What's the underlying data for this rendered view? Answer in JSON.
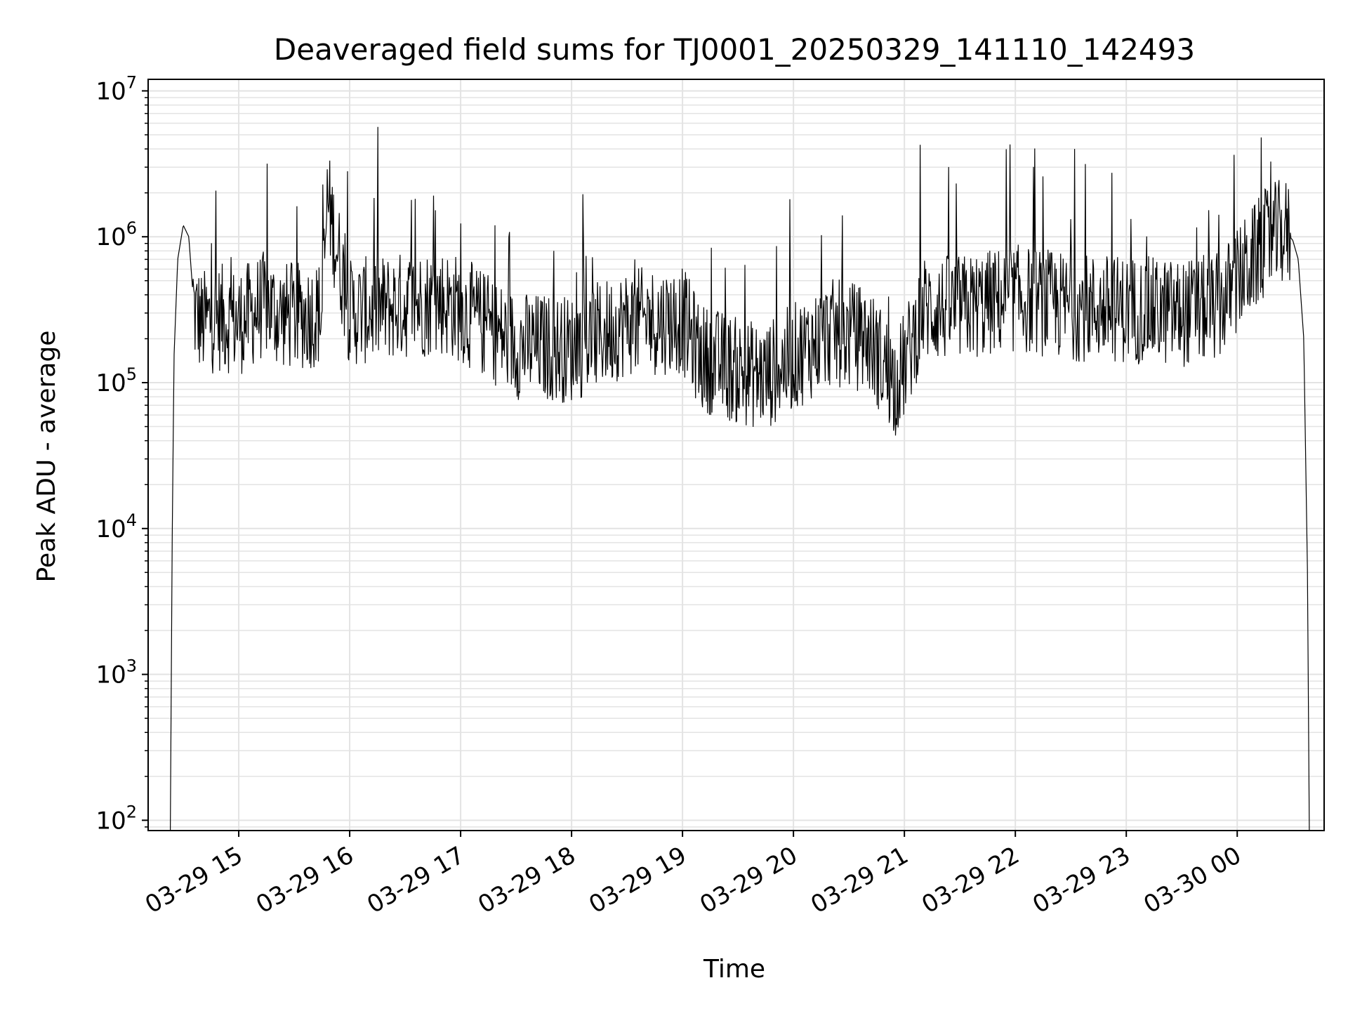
{
  "chart_data": {
    "type": "line",
    "title": "Deaveraged field sums for TJ0001_20250329_141110_142493",
    "xlabel": "Time",
    "ylabel": "Peak ADU - average",
    "yscale": "log",
    "ylim": [
      85,
      12000000
    ],
    "xlim": [
      "2025-03-29 14:11",
      "2025-03-30 00:47"
    ],
    "grid": true,
    "line_color": "#000000",
    "grid_color": "#e3e3e3",
    "x_ticks": [
      "03-29 15",
      "03-29 16",
      "03-29 17",
      "03-29 18",
      "03-29 19",
      "03-29 20",
      "03-29 21",
      "03-29 22",
      "03-29 23",
      "03-30 00"
    ],
    "y_ticks": [
      {
        "base": "10",
        "exp": "2",
        "value": 100
      },
      {
        "base": "10",
        "exp": "3",
        "value": 1000
      },
      {
        "base": "10",
        "exp": "4",
        "value": 10000
      },
      {
        "base": "10",
        "exp": "5",
        "value": 100000
      },
      {
        "base": "10",
        "exp": "6",
        "value": 1000000
      },
      {
        "base": "10",
        "exp": "7",
        "value": 10000000
      }
    ],
    "series": [
      {
        "x": [
          "2025-03-29 14:23",
          "2025-03-29 14:24",
          "2025-03-29 14:25",
          "2025-03-29 14:27",
          "2025-03-29 14:30",
          "2025-03-29 14:33",
          "2025-03-29 14:36",
          "2025-03-29 14:38",
          "2025-03-29 14:40",
          "2025-03-29 14:42",
          "2025-03-29 14:45",
          "2025-03-29 14:50",
          "2025-03-29 15:00",
          "2025-03-29 15:15",
          "2025-03-29 15:20",
          "2025-03-29 15:30",
          "2025-03-29 15:45",
          "2025-03-29 15:48",
          "2025-03-29 16:00",
          "2025-03-29 16:30",
          "2025-03-29 16:50",
          "2025-03-29 17:00",
          "2025-03-29 17:30",
          "2025-03-29 18:00",
          "2025-03-29 18:30",
          "2025-03-29 19:00",
          "2025-03-29 19:10",
          "2025-03-29 19:30",
          "2025-03-29 19:45",
          "2025-03-29 20:00",
          "2025-03-29 20:20",
          "2025-03-29 20:40",
          "2025-03-29 20:55",
          "2025-03-29 21:00",
          "2025-03-29 21:10",
          "2025-03-29 21:30",
          "2025-03-29 22:00",
          "2025-03-29 22:30",
          "2025-03-29 23:00",
          "2025-03-29 23:30",
          "2025-03-29 23:50",
          "2025-03-30 00:15",
          "2025-03-30 00:25",
          "2025-03-30 00:30",
          "2025-03-30 00:33",
          "2025-03-30 00:36",
          "2025-03-30 00:38",
          "2025-03-30 00:39"
        ],
        "y": [
          85,
          8000,
          150000,
          700000,
          1200000,
          1000000,
          300000,
          280000,
          250000,
          260000,
          270000,
          280000,
          260000,
          350000,
          300000,
          280000,
          300000,
          1800000,
          300000,
          340000,
          360000,
          320000,
          180000,
          170000,
          260000,
          270000,
          150000,
          120000,
          110000,
          150000,
          220000,
          200000,
          100000,
          130000,
          320000,
          320000,
          380000,
          330000,
          320000,
          300000,
          330000,
          900000,
          1100000,
          950000,
          700000,
          200000,
          5000,
          85
        ]
      }
    ]
  }
}
